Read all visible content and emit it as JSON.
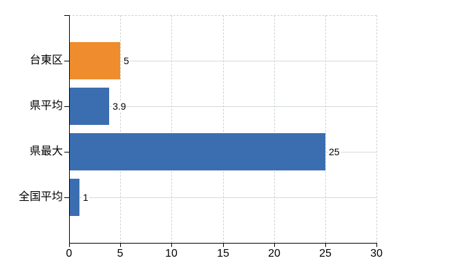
{
  "chart_data": {
    "type": "bar",
    "orientation": "horizontal",
    "title": "",
    "xlabel": "",
    "ylabel": "",
    "categories": [
      "台東区",
      "県平均",
      "県最大",
      "全国平均"
    ],
    "values": [
      5,
      3.9,
      25,
      1
    ],
    "value_labels": [
      "5",
      "3.9",
      "25",
      "1"
    ],
    "xlim": [
      0,
      30
    ],
    "x_ticks": [
      0,
      5,
      10,
      15,
      20,
      25,
      30
    ],
    "legend": "none",
    "grid": {
      "vertical_gridlines": "dashed, at every x tick except 0, plus dashed plot top border",
      "horizontal_gridlines": "solid, one per category center, drawn behind bars"
    },
    "colors": {
      "bars": [
        "#EE8C2E",
        "#3B6EB0",
        "#3B6EB0",
        "#3B6EB0"
      ],
      "highlight_bar": "#EE8C2E",
      "default_bar": "#3B6EB0",
      "axis": "#000000",
      "vertical_gridline": "#CDD3CD",
      "horizontal_gridline": "#D5DBD4",
      "text": "#000000",
      "background": "#FFFFFF"
    }
  }
}
